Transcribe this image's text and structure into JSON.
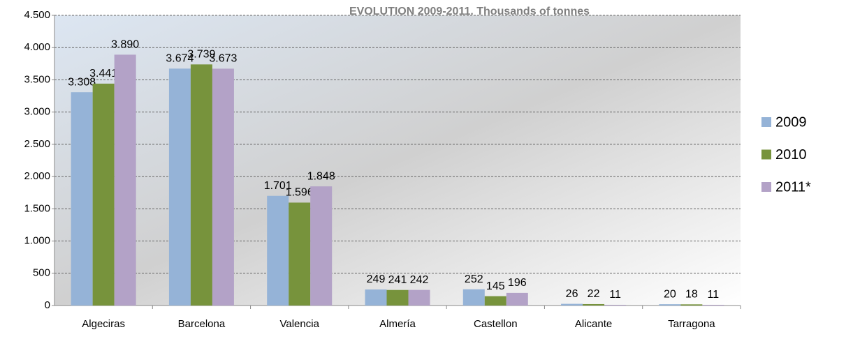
{
  "chart_data": {
    "type": "bar",
    "title": "EVOLUTION 2009-2011. Thousands of tonnes",
    "categories": [
      "Algeciras",
      "Barcelona",
      "Valencia",
      "Almería",
      "Castellon",
      "Alicante",
      "Tarragona"
    ],
    "series": [
      {
        "name": "2009",
        "color": "#95b3d7",
        "values": [
          3308,
          3674,
          1701,
          249,
          252,
          26,
          20
        ],
        "value_labels": [
          "3.308",
          "3.674",
          "1.701",
          "249",
          "252",
          "26",
          "20"
        ]
      },
      {
        "name": "2010",
        "color": "#77933c",
        "values": [
          3441,
          3739,
          1596,
          241,
          145,
          22,
          18
        ],
        "value_labels": [
          "3.441",
          "3.739",
          "1.596",
          "241",
          "145",
          "22",
          "18"
        ]
      },
      {
        "name": "2011*",
        "color": "#b3a2c7",
        "values": [
          3890,
          3673,
          1848,
          242,
          196,
          11,
          11
        ],
        "value_labels": [
          "3.890",
          "3.673",
          "1.848",
          "242",
          "196",
          "11",
          "11"
        ]
      }
    ],
    "ylim": [
      0,
      4500
    ],
    "yticks": [
      0,
      500,
      {
        "value": 1000,
        "label": "1.000"
      },
      {
        "value": 1500,
        "label": "1.500"
      },
      {
        "value": 2000,
        "label": "2.000"
      },
      {
        "value": 2500,
        "label": "2.500"
      },
      {
        "value": 3000,
        "label": "3.000"
      },
      {
        "value": 3500,
        "label": "3.500"
      },
      {
        "value": 4000,
        "label": "4.000"
      },
      {
        "value": 4500,
        "label": "4.500"
      }
    ],
    "grid": true,
    "legend": "right"
  }
}
